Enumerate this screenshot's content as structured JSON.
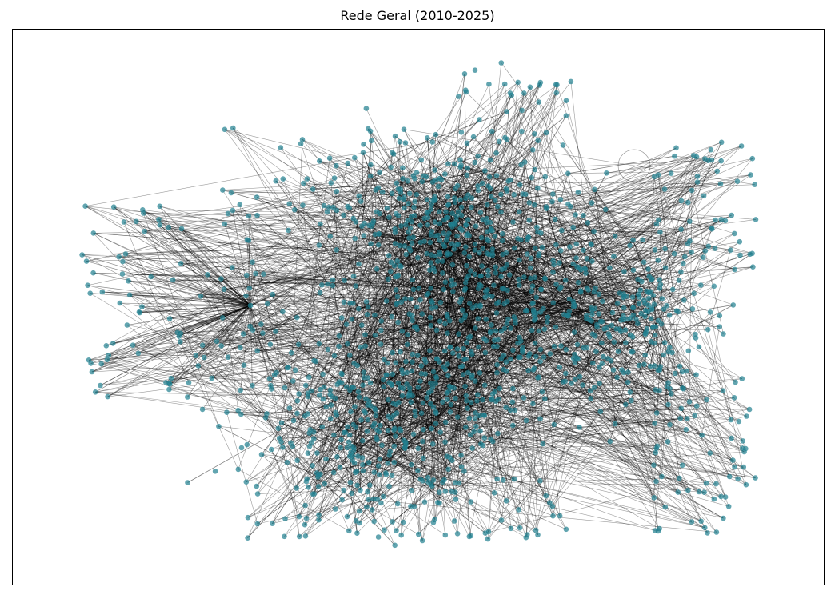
{
  "figure": {
    "title": "Rede Geral (2010-2025)"
  },
  "style": {
    "node_color": "#1f7f8f",
    "edge_color": "#000000",
    "background": "#ffffff"
  }
}
